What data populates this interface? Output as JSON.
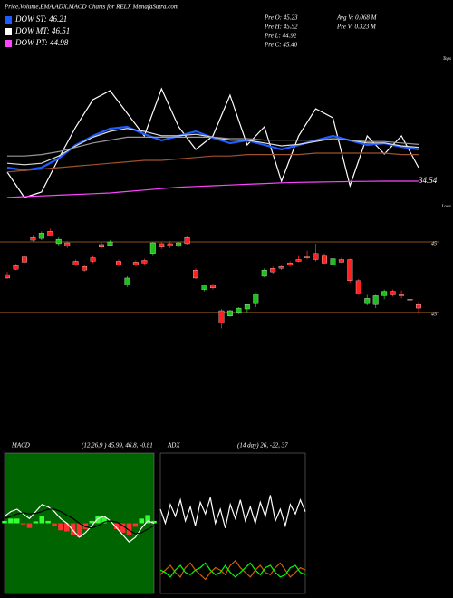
{
  "header": {
    "title": "Price,Volume,EMA,ADX,MACD Charts for RELX  MunafaSutra.com",
    "legend": [
      {
        "label": "DOW ST: 46.21",
        "color": "#1e5cff"
      },
      {
        "label": "DOW MT: 46.51",
        "color": "#ffffff"
      },
      {
        "label": "DOW PT: 44.98",
        "color": "#ff44ff"
      }
    ],
    "stats_left": [
      "Pre  O: 45.23",
      "Pre  H: 45.52",
      "Pre  L: 44.92",
      "Pre  C: 45.40"
    ],
    "stats_right": [
      "Avg V: 0.068  M",
      "Pre  V: 0.323 M"
    ]
  },
  "chart_data": [
    {
      "type": "line",
      "ylim": [
        0,
        100
      ],
      "annotations": [
        "Tops",
        "Lows"
      ],
      "end_label": "34.54",
      "series": [
        {
          "color": "#ffffff",
          "values": [
            21.9,
            4.4,
            8.1,
            31.3,
            53.1,
            71.9,
            78.1,
            62.5,
            46.9,
            79.4,
            53.1,
            37.5,
            46.9,
            75,
            40.6,
            53.1,
            15.6,
            46.9,
            65.6,
            59.4,
            12.5,
            46.9,
            34.4,
            46.9,
            25
          ]
        },
        {
          "color": "#1e5cff",
          "values": [
            25,
            23.1,
            25,
            31.3,
            40.6,
            46.9,
            51.9,
            53.1,
            48.1,
            43.8,
            46.9,
            50,
            45.6,
            41.9,
            43.8,
            40.6,
            37.5,
            40.6,
            43.8,
            46.9,
            43.8,
            40.6,
            41.9,
            39.4,
            37.5
          ]
        },
        {
          "color": "#dddddd",
          "values": [
            28,
            27,
            28,
            33,
            40,
            46,
            50,
            52,
            50,
            47,
            47,
            48,
            46,
            44,
            44,
            42,
            40,
            41,
            43,
            45,
            44,
            42,
            42,
            40,
            39
          ]
        },
        {
          "color": "#999999",
          "values": [
            33,
            33,
            34,
            36,
            39,
            42,
            44,
            46,
            46,
            46,
            46,
            46,
            46,
            45,
            45,
            44,
            44,
            44,
            44,
            45,
            44,
            43,
            43,
            42,
            41
          ]
        },
        {
          "color": "#a0522d",
          "values": [
            22,
            23,
            24,
            25,
            26,
            27,
            28,
            29,
            30,
            30,
            31,
            32,
            33,
            33,
            34,
            34,
            34,
            34,
            35,
            35,
            35,
            35,
            35,
            34,
            34
          ]
        },
        {
          "color": "#ff44ff",
          "values": [
            4.4,
            5,
            5.5,
            6,
            6.5,
            7,
            7.5,
            8.5,
            9.5,
            10.5,
            11.5,
            12,
            12.5,
            13,
            13.5,
            14,
            14.5,
            14.8,
            15,
            15.2,
            15.4,
            15.5,
            15.6,
            15.6,
            15.6
          ]
        }
      ]
    },
    {
      "type": "candlestick",
      "ylim": [
        44.24,
        45.78
      ],
      "up_color": "#1fbf1f",
      "down_color": "#ff2020",
      "level_color": "#b06a20",
      "levels": [
        {
          "value": 45.4,
          "label": "45"
        },
        {
          "value": 44.6,
          "label": "45"
        }
      ],
      "candles": [
        [
          45.03,
          45.06,
          44.98,
          44.99
        ],
        [
          45.13,
          45.15,
          45.08,
          45.09
        ],
        [
          45.23,
          45.25,
          45.16,
          45.17
        ],
        [
          45.45,
          45.48,
          45.4,
          45.42
        ],
        [
          45.44,
          45.52,
          45.42,
          45.5
        ],
        [
          45.52,
          45.55,
          45.46,
          45.47
        ],
        [
          45.38,
          45.45,
          45.36,
          45.43
        ],
        [
          45.39,
          45.41,
          45.33,
          45.35
        ],
        [
          45.18,
          45.2,
          45.13,
          45.14
        ],
        [
          45.12,
          45.14,
          45.06,
          45.08
        ],
        [
          45.22,
          45.25,
          45.16,
          45.18
        ],
        [
          45.37,
          45.4,
          45.32,
          45.34
        ],
        [
          45.36,
          45.42,
          45.35,
          45.4
        ],
        [
          45.18,
          45.2,
          45.12,
          45.14
        ],
        [
          44.91,
          45.01,
          44.89,
          44.99
        ],
        [
          45.17,
          45.19,
          45.12,
          45.14
        ],
        [
          45.19,
          45.21,
          45.14,
          45.16
        ],
        [
          45.27,
          45.4,
          45.25,
          45.39
        ],
        [
          45.38,
          45.4,
          45.32,
          45.34
        ],
        [
          45.38,
          45.41,
          45.33,
          45.35
        ],
        [
          45.35,
          45.4,
          45.34,
          45.39
        ],
        [
          45.45,
          45.47,
          45.37,
          45.38
        ],
        [
          45.08,
          45.1,
          44.98,
          44.99
        ],
        [
          44.86,
          44.92,
          44.84,
          44.91
        ],
        [
          44.91,
          44.93,
          44.86,
          44.88
        ],
        [
          44.62,
          44.64,
          44.42,
          44.48
        ],
        [
          44.56,
          44.63,
          44.55,
          44.62
        ],
        [
          44.6,
          44.66,
          44.58,
          44.65
        ],
        [
          44.64,
          44.7,
          44.6,
          44.69
        ],
        [
          44.71,
          44.82,
          44.66,
          44.81
        ],
        [
          45.01,
          45.1,
          45.0,
          45.08
        ],
        [
          45.1,
          45.12,
          45.04,
          45.06
        ],
        [
          45.12,
          45.14,
          45.08,
          45.1
        ],
        [
          45.16,
          45.18,
          45.12,
          45.14
        ],
        [
          45.2,
          45.25,
          45.17,
          45.18
        ],
        [
          45.23,
          45.3,
          45.2,
          45.22
        ],
        [
          45.27,
          45.38,
          45.18,
          45.2
        ],
        [
          45.25,
          45.27,
          45.15,
          45.16
        ],
        [
          45.14,
          45.22,
          45.13,
          45.21
        ],
        [
          45.2,
          45.22,
          45.16,
          45.17
        ],
        [
          45.2,
          45.21,
          44.94,
          44.96
        ],
        [
          44.96,
          44.98,
          44.8,
          44.81
        ],
        [
          44.71,
          44.8,
          44.68,
          44.76
        ],
        [
          44.69,
          44.8,
          44.65,
          44.79
        ],
        [
          44.79,
          44.86,
          44.75,
          44.84
        ],
        [
          44.84,
          44.86,
          44.78,
          44.8
        ],
        [
          44.8,
          44.85,
          44.76,
          44.79
        ],
        [
          44.75,
          44.77,
          44.72,
          44.74
        ],
        [
          44.69,
          44.72,
          44.58,
          44.65
        ]
      ]
    },
    {
      "type": "macd",
      "title": "MACD",
      "subtitle": "(12,26,9 ) 45.99, 46.8, -0.81",
      "ylim": [
        -3,
        3
      ],
      "background": "#006400",
      "hist_up_color": "#33ff33",
      "hist_down_color": "#ff3030",
      "histogram": [
        0.1,
        0.2,
        0.2,
        -0.05,
        -0.2,
        0.08,
        0.3,
        0.1,
        -0.1,
        -0.3,
        -0.35,
        -0.5,
        -0.6,
        -0.25,
        0.1,
        0.3,
        0.25,
        0.0,
        -0.25,
        -0.4,
        -0.5,
        -0.15,
        0.2,
        0.35,
        0.1
      ],
      "series": [
        {
          "color": "#ffffff",
          "values": [
            0.3,
            0.5,
            0.6,
            0.4,
            0.2,
            0.5,
            0.8,
            0.7,
            0.5,
            0.2,
            0.0,
            -0.3,
            -0.6,
            -0.4,
            -0.1,
            0.2,
            0.3,
            0.1,
            -0.2,
            -0.5,
            -0.8,
            -0.6,
            -0.2,
            0.1,
            0.0
          ]
        },
        {
          "color": "#000000",
          "values": [
            0.2,
            0.3,
            0.4,
            0.45,
            0.4,
            0.42,
            0.5,
            0.6,
            0.6,
            0.5,
            0.35,
            0.2,
            0.0,
            -0.15,
            -0.2,
            -0.1,
            0.05,
            0.1,
            0.05,
            -0.1,
            -0.3,
            -0.45,
            -0.4,
            -0.25,
            -0.1
          ]
        }
      ]
    },
    {
      "type": "adx",
      "title": "ADX",
      "subtitle": "(14 day) 26, -22, 37",
      "ylim": [
        0,
        60
      ],
      "background": "#000000",
      "series": [
        {
          "color": "#ffffff",
          "values": [
            36,
            30,
            38,
            33,
            40,
            31,
            37,
            29,
            39,
            34,
            41,
            30,
            36,
            28,
            38,
            32,
            40,
            31,
            37,
            30,
            39,
            33,
            42,
            31,
            36,
            29,
            38,
            34,
            40,
            35
          ]
        },
        {
          "color": "#d06000",
          "values": [
            8,
            10,
            12,
            9,
            7,
            11,
            13,
            10,
            8,
            6,
            9,
            11,
            10,
            8,
            12,
            14,
            11,
            9,
            7,
            10,
            12,
            9,
            8,
            11,
            13,
            10,
            7,
            9,
            11,
            10
          ]
        },
        {
          "color": "#00ff00",
          "values": [
            10,
            9,
            7,
            10,
            12,
            9,
            8,
            10,
            11,
            13,
            10,
            8,
            9,
            12,
            9,
            7,
            9,
            11,
            13,
            10,
            8,
            11,
            12,
            9,
            7,
            8,
            11,
            12,
            9,
            8
          ]
        }
      ]
    }
  ]
}
